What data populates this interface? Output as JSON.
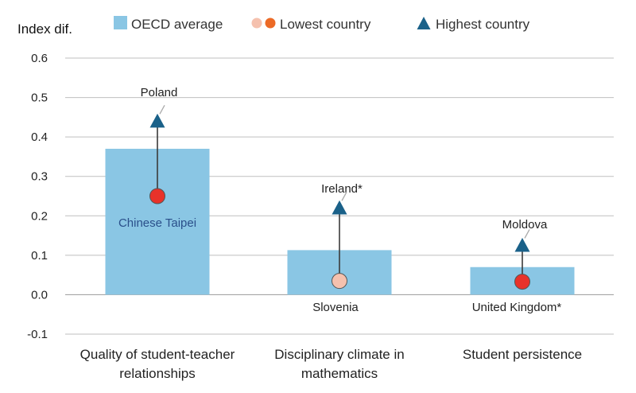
{
  "chart_data": {
    "type": "bar",
    "ylabel": "Index dif.",
    "ylim": [
      -0.1,
      0.6
    ],
    "yticks": [
      -0.1,
      0.0,
      0.1,
      0.2,
      0.3,
      0.4,
      0.5,
      0.6
    ],
    "yticks_text": [
      "-0.1",
      "0.0",
      "0.1",
      "0.2",
      "0.3",
      "0.4",
      "0.5",
      "0.6"
    ],
    "grid": true,
    "legend_position": "top",
    "legend": [
      {
        "name": "OECD average",
        "marker": "bar"
      },
      {
        "name": "Lowest country",
        "marker": "circle"
      },
      {
        "name": "Highest country",
        "marker": "triangle"
      }
    ],
    "categories": [
      {
        "label": [
          "Quality of student-teacher",
          "relationships"
        ]
      },
      {
        "label": [
          "Disciplinary climate in",
          "mathematics"
        ]
      },
      {
        "label": [
          "Student persistence"
        ]
      }
    ],
    "series": [
      {
        "name": "OECD average",
        "values": [
          0.37,
          0.113,
          0.07
        ]
      },
      {
        "name": "Lowest country",
        "values": [
          0.25,
          0.035,
          0.033
        ],
        "countries": [
          "Chinese Taipei",
          "Slovenia",
          "United Kingdom*"
        ]
      },
      {
        "name": "Highest country",
        "values": [
          0.44,
          0.22,
          0.125
        ],
        "countries": [
          "Poland",
          "Ireland*",
          "Moldova"
        ]
      }
    ],
    "colors": {
      "bar": "#8ac6e4",
      "triangle": "#1a6189",
      "circle_red": "#e8322a",
      "circle_pale": "#f5c1ae",
      "circle_orange": "#ec6a26",
      "grid": "#bfbfbf",
      "line": "#3a3a3a",
      "inside_label": "#2a4f8a"
    }
  }
}
